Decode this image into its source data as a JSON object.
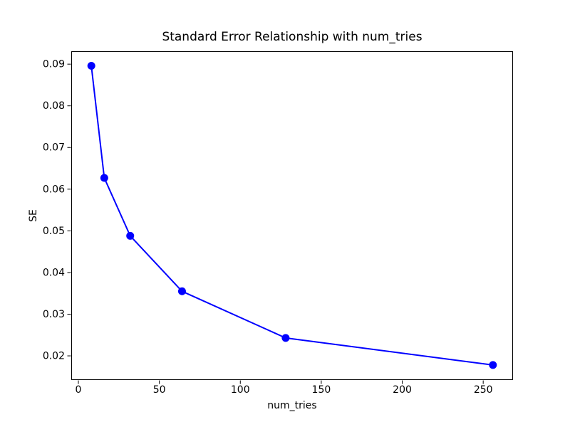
{
  "figure": {
    "background_color": "#ffffff",
    "spine_color": "#000000",
    "tick_label_color": "#000000"
  },
  "chart_data": {
    "type": "line",
    "title": "Standard Error Relationship with num_tries",
    "xlabel": "num_tries",
    "ylabel": "SE",
    "x": [
      8,
      16,
      32,
      64,
      128,
      256
    ],
    "series": [
      {
        "name": "SE",
        "values": [
          0.0896,
          0.0627,
          0.0488,
          0.0355,
          0.0243,
          0.0178
        ],
        "color": "#0000ff",
        "marker": "o",
        "line_style": "solid"
      }
    ],
    "xlim": [
      -4.4,
      268.4
    ],
    "ylim": [
      0.0142,
      0.0931
    ],
    "xticks": [
      0,
      50,
      100,
      150,
      200,
      250
    ],
    "xtick_labels": [
      "0",
      "50",
      "100",
      "150",
      "200",
      "250"
    ],
    "yticks": [
      0.02,
      0.03,
      0.04,
      0.05,
      0.06,
      0.07,
      0.08,
      0.09
    ],
    "ytick_labels": [
      "0.02",
      "0.03",
      "0.04",
      "0.05",
      "0.06",
      "0.07",
      "0.08",
      "0.09"
    ],
    "grid": false,
    "legend_position": "none"
  }
}
